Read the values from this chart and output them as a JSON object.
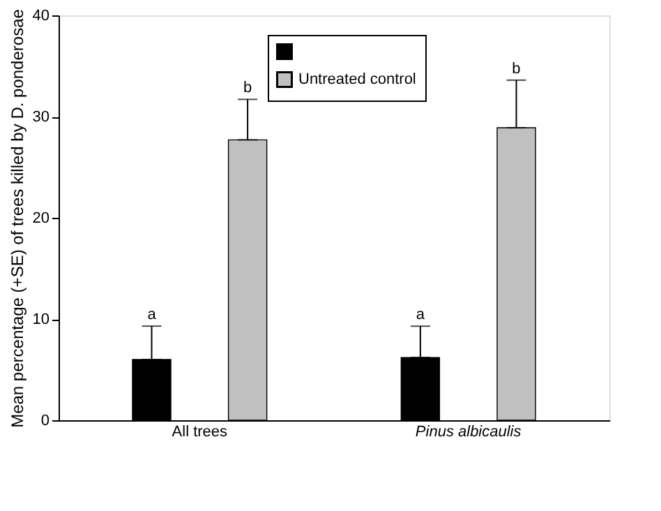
{
  "chart_data": {
    "type": "bar",
    "ylabel": "Mean percentage (+SE) of trees killed by D. ponderosae",
    "categories": [
      "All trees",
      "Pinus albicaulis"
    ],
    "series": [
      {
        "color": "#000000",
        "values": [
          6.0,
          6.2
        ],
        "errors": [
          [
            6.0,
            9.3
          ],
          [
            6.2,
            9.3
          ]
        ]
      },
      {
        "name": "Untreated control",
        "color": "#c0c0c0",
        "values": [
          27.7,
          28.9
        ],
        "errors": [
          [
            27.7,
            31.7
          ],
          [
            28.9,
            33.6
          ]
        ]
      }
    ],
    "ylim": [
      0,
      40
    ],
    "yticks": [
      0,
      10,
      20,
      30,
      40
    ],
    "grid": false,
    "legend": "top right",
    "annotations": [
      "a",
      "b",
      "a",
      "b"
    ]
  }
}
